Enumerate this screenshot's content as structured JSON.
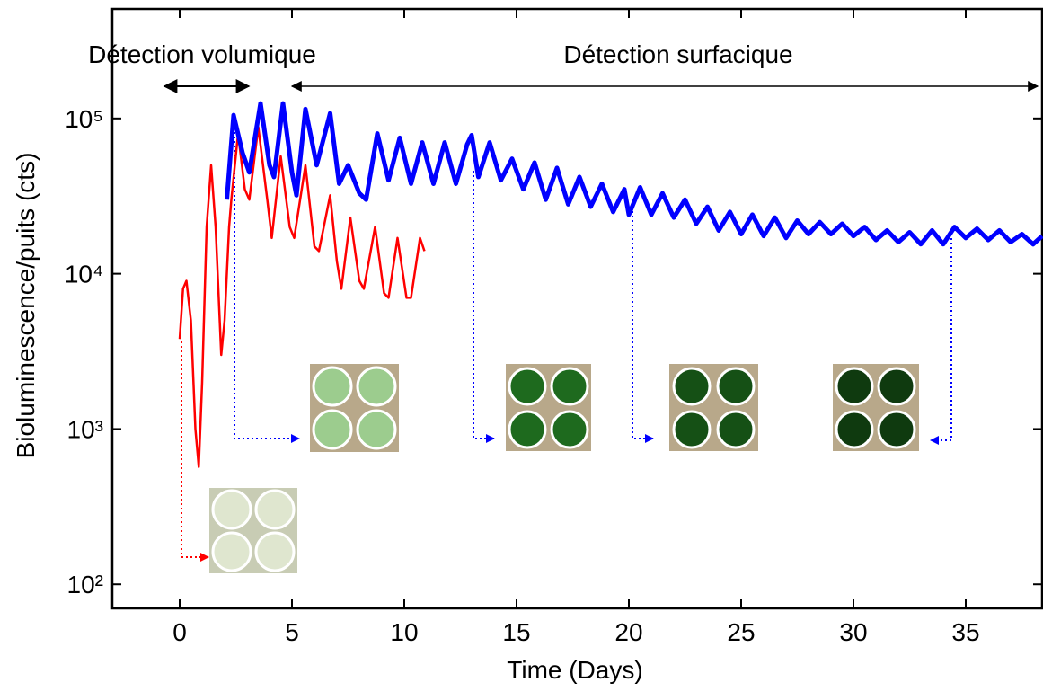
{
  "chart_data": {
    "type": "line",
    "xlabel": "Time (Days)",
    "ylabel": "Bioluminescence/puits (cts)",
    "annotations": [
      "Détection volumique",
      "Détection surfacique"
    ],
    "xlim": [
      -3,
      38.4
    ],
    "xticks": [
      0,
      5,
      10,
      15,
      20,
      25,
      30,
      35
    ],
    "ylim": [
      70,
      507000
    ],
    "log_y": true,
    "yticks": [
      {
        "value": 100,
        "label": "10²"
      },
      {
        "value": 1000,
        "label": "10³"
      },
      {
        "value": 10000,
        "label": "10⁴"
      },
      {
        "value": 100000,
        "label": "10⁵"
      }
    ],
    "series": [
      {
        "color": "#ff0000",
        "x": [
          0,
          0.15,
          0.3,
          0.5,
          0.7,
          0.85,
          1.0,
          1.2,
          1.4,
          1.6,
          1.85,
          2.0,
          2.2,
          2.3,
          2.6,
          2.9,
          3.1,
          3.5,
          3.9,
          4.1,
          4.5,
          4.9,
          5.1,
          5.6,
          6.0,
          6.2,
          6.7,
          7.0,
          7.2,
          7.6,
          8.0,
          8.2,
          8.7,
          9.1,
          9.3,
          9.7,
          10.1,
          10.3,
          10.7,
          10.9
        ],
        "values": [
          3800,
          8000,
          9000,
          5000,
          1000,
          570,
          2000,
          20000,
          50000,
          20000,
          3000,
          5000,
          20000,
          30000,
          80000,
          35000,
          30000,
          88000,
          30000,
          17000,
          57000,
          20000,
          17000,
          50000,
          15000,
          14000,
          32000,
          12000,
          8000,
          23000,
          9000,
          8000,
          20000,
          7500,
          7000,
          17000,
          7000,
          7000,
          17000,
          14000
        ]
      },
      {
        "color": "#0000ff",
        "x": [
          2.1,
          2.4,
          2.8,
          3.1,
          3.6,
          4.0,
          4.2,
          4.6,
          5.0,
          5.2,
          5.6,
          6.1,
          6.7,
          7.1,
          7.5,
          8.0,
          8.3,
          8.8,
          9.3,
          9.8,
          10.3,
          10.8,
          11.3,
          11.8,
          12.3,
          12.8,
          13.0,
          13.3,
          13.8,
          14.3,
          14.8,
          15.3,
          15.8,
          16.3,
          16.8,
          17.3,
          17.8,
          18.3,
          18.8,
          19.3,
          19.8,
          20.0,
          20.5,
          21.0,
          21.5,
          22.0,
          22.5,
          23.0,
          23.5,
          24.0,
          24.5,
          25.0,
          25.5,
          26.0,
          26.5,
          27.0,
          27.5,
          28.0,
          28.5,
          29.0,
          29.5,
          30.0,
          30.5,
          31.0,
          31.5,
          32.0,
          32.5,
          33.0,
          33.5,
          34.0,
          34.5,
          35.0,
          35.5,
          36.0,
          36.5,
          37.0,
          37.5,
          38.0,
          38.4
        ],
        "values": [
          30000,
          105000,
          60000,
          45000,
          125000,
          50000,
          42000,
          125000,
          45000,
          32000,
          115000,
          50000,
          108000,
          38000,
          50000,
          33000,
          30000,
          80000,
          40000,
          75000,
          38000,
          70000,
          38000,
          70000,
          38000,
          68000,
          78000,
          42000,
          70000,
          40000,
          55000,
          35000,
          52000,
          30000,
          48000,
          28000,
          42000,
          27000,
          38000,
          25000,
          35000,
          24000,
          36000,
          24000,
          33000,
          23000,
          30000,
          21000,
          27000,
          19000,
          25000,
          18000,
          24000,
          17500,
          23000,
          17000,
          22000,
          18000,
          21500,
          18000,
          21000,
          17500,
          20000,
          16500,
          19000,
          16000,
          18500,
          15500,
          19000,
          15500,
          20000,
          17000,
          19500,
          16500,
          19000,
          16000,
          18000,
          15500,
          17500
        ]
      }
    ]
  }
}
